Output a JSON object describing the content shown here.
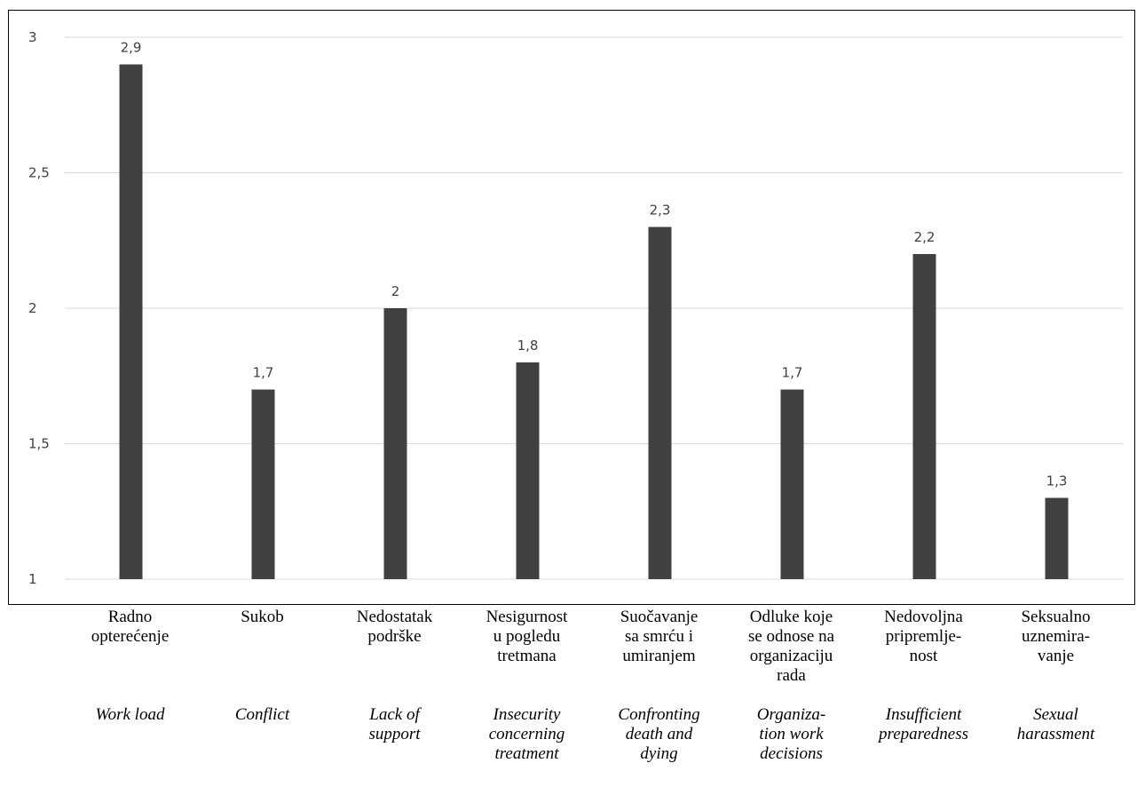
{
  "chart_data": {
    "type": "bar",
    "categories": [
      "Radno opterećenje",
      "Sukob",
      "Nedostatak podrške",
      "Nesigurnost u pogledu tretmana",
      "Suočavanje sa smrću i umiranjem",
      "Odluke koje se odnose na organizaciju rada",
      "Nedovoljna pripremlje-nost",
      "Seksualno uznemira-vanje"
    ],
    "categories_en": [
      "Work load",
      "Conflict",
      "Lack of support",
      "Insecurity concerning treatment",
      "Confronting death and dying",
      "Organiza-tion work decisions",
      "Insufficient preparedness",
      "Sexual harassment"
    ],
    "values": [
      2.9,
      1.7,
      2,
      1.8,
      2.3,
      1.7,
      2.2,
      1.3
    ],
    "value_labels": [
      "2,9",
      "1,7",
      "2",
      "1,8",
      "2,3",
      "1,7",
      "2,2",
      "1,3"
    ],
    "ylim": [
      1,
      3
    ],
    "yticks": [
      1,
      1.5,
      2,
      2.5,
      3
    ],
    "ytick_labels": [
      "1",
      "1,5",
      "2",
      "2,5",
      "3"
    ],
    "grid": true,
    "bar_color": "#404040",
    "grid_color": "#d9d9d9"
  }
}
